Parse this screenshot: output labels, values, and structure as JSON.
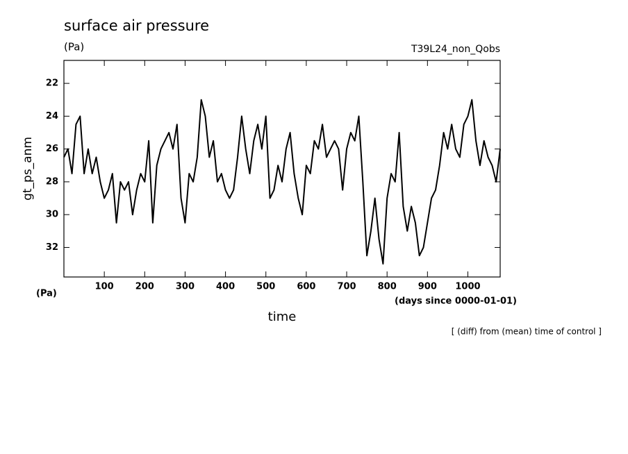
{
  "chart_data": {
    "type": "line",
    "title": "surface air pressure",
    "unit_label": "(Pa)",
    "run_label": "T39L24_non_Qobs",
    "ylabel": "gt_ps_anm",
    "yunit_label": "(Pa)",
    "xlabel": "time",
    "xunit_label": "(days since 0000-01-01)",
    "note": "[ (diff) from (mean) time of control ]",
    "xlim": [
      0,
      1080
    ],
    "ylim": [
      20.6,
      33.8
    ],
    "y_inverted": true,
    "xticks": [
      100,
      200,
      300,
      400,
      500,
      600,
      700,
      800,
      900,
      1000
    ],
    "yticks": [
      22,
      24,
      26,
      28,
      30,
      32
    ],
    "x": [
      0,
      10,
      20,
      30,
      40,
      50,
      60,
      70,
      80,
      90,
      100,
      110,
      120,
      130,
      140,
      150,
      160,
      170,
      180,
      190,
      200,
      210,
      220,
      230,
      240,
      250,
      260,
      270,
      280,
      290,
      300,
      310,
      320,
      330,
      340,
      350,
      360,
      370,
      380,
      390,
      400,
      410,
      420,
      430,
      440,
      450,
      460,
      470,
      480,
      490,
      500,
      510,
      520,
      530,
      540,
      550,
      560,
      570,
      580,
      590,
      600,
      610,
      620,
      630,
      640,
      650,
      660,
      670,
      680,
      690,
      700,
      710,
      720,
      730,
      740,
      750,
      760,
      770,
      780,
      790,
      800,
      810,
      820,
      830,
      840,
      850,
      860,
      870,
      880,
      890,
      900,
      910,
      920,
      930,
      940,
      950,
      960,
      970,
      980,
      990,
      1000,
      1010,
      1020,
      1030,
      1040,
      1050,
      1060,
      1070,
      1080
    ],
    "series": [
      {
        "color": "#000000",
        "values": [
          26.5,
          26,
          27.5,
          24.5,
          24,
          27.5,
          26,
          27.5,
          26.5,
          28,
          29,
          28.5,
          27.5,
          30.5,
          28,
          28.5,
          28,
          30,
          28.5,
          27.5,
          28,
          25.5,
          30.5,
          27,
          26,
          25.5,
          25,
          26,
          24.5,
          29,
          30.5,
          27.5,
          28,
          26.5,
          23,
          24,
          26.5,
          25.5,
          28,
          27.5,
          28.5,
          29,
          28.5,
          26.5,
          24,
          26,
          27.5,
          25.5,
          24.5,
          26,
          24,
          29,
          28.5,
          27,
          28,
          26,
          25,
          27.5,
          29,
          30,
          27,
          27.5,
          25.5,
          26,
          24.5,
          26.5,
          26,
          25.5,
          26,
          28.5,
          26,
          25,
          25.5,
          24,
          28,
          32.5,
          31,
          29,
          31.5,
          33,
          29,
          27.5,
          28,
          25,
          29.5,
          31,
          29.5,
          30.5,
          32.5,
          32,
          30.5,
          29,
          28.5,
          27,
          25,
          26,
          24.5,
          26,
          26.5,
          24.5,
          24,
          23,
          25.5,
          27,
          25.5,
          26.5,
          27,
          28,
          26
        ]
      }
    ]
  }
}
